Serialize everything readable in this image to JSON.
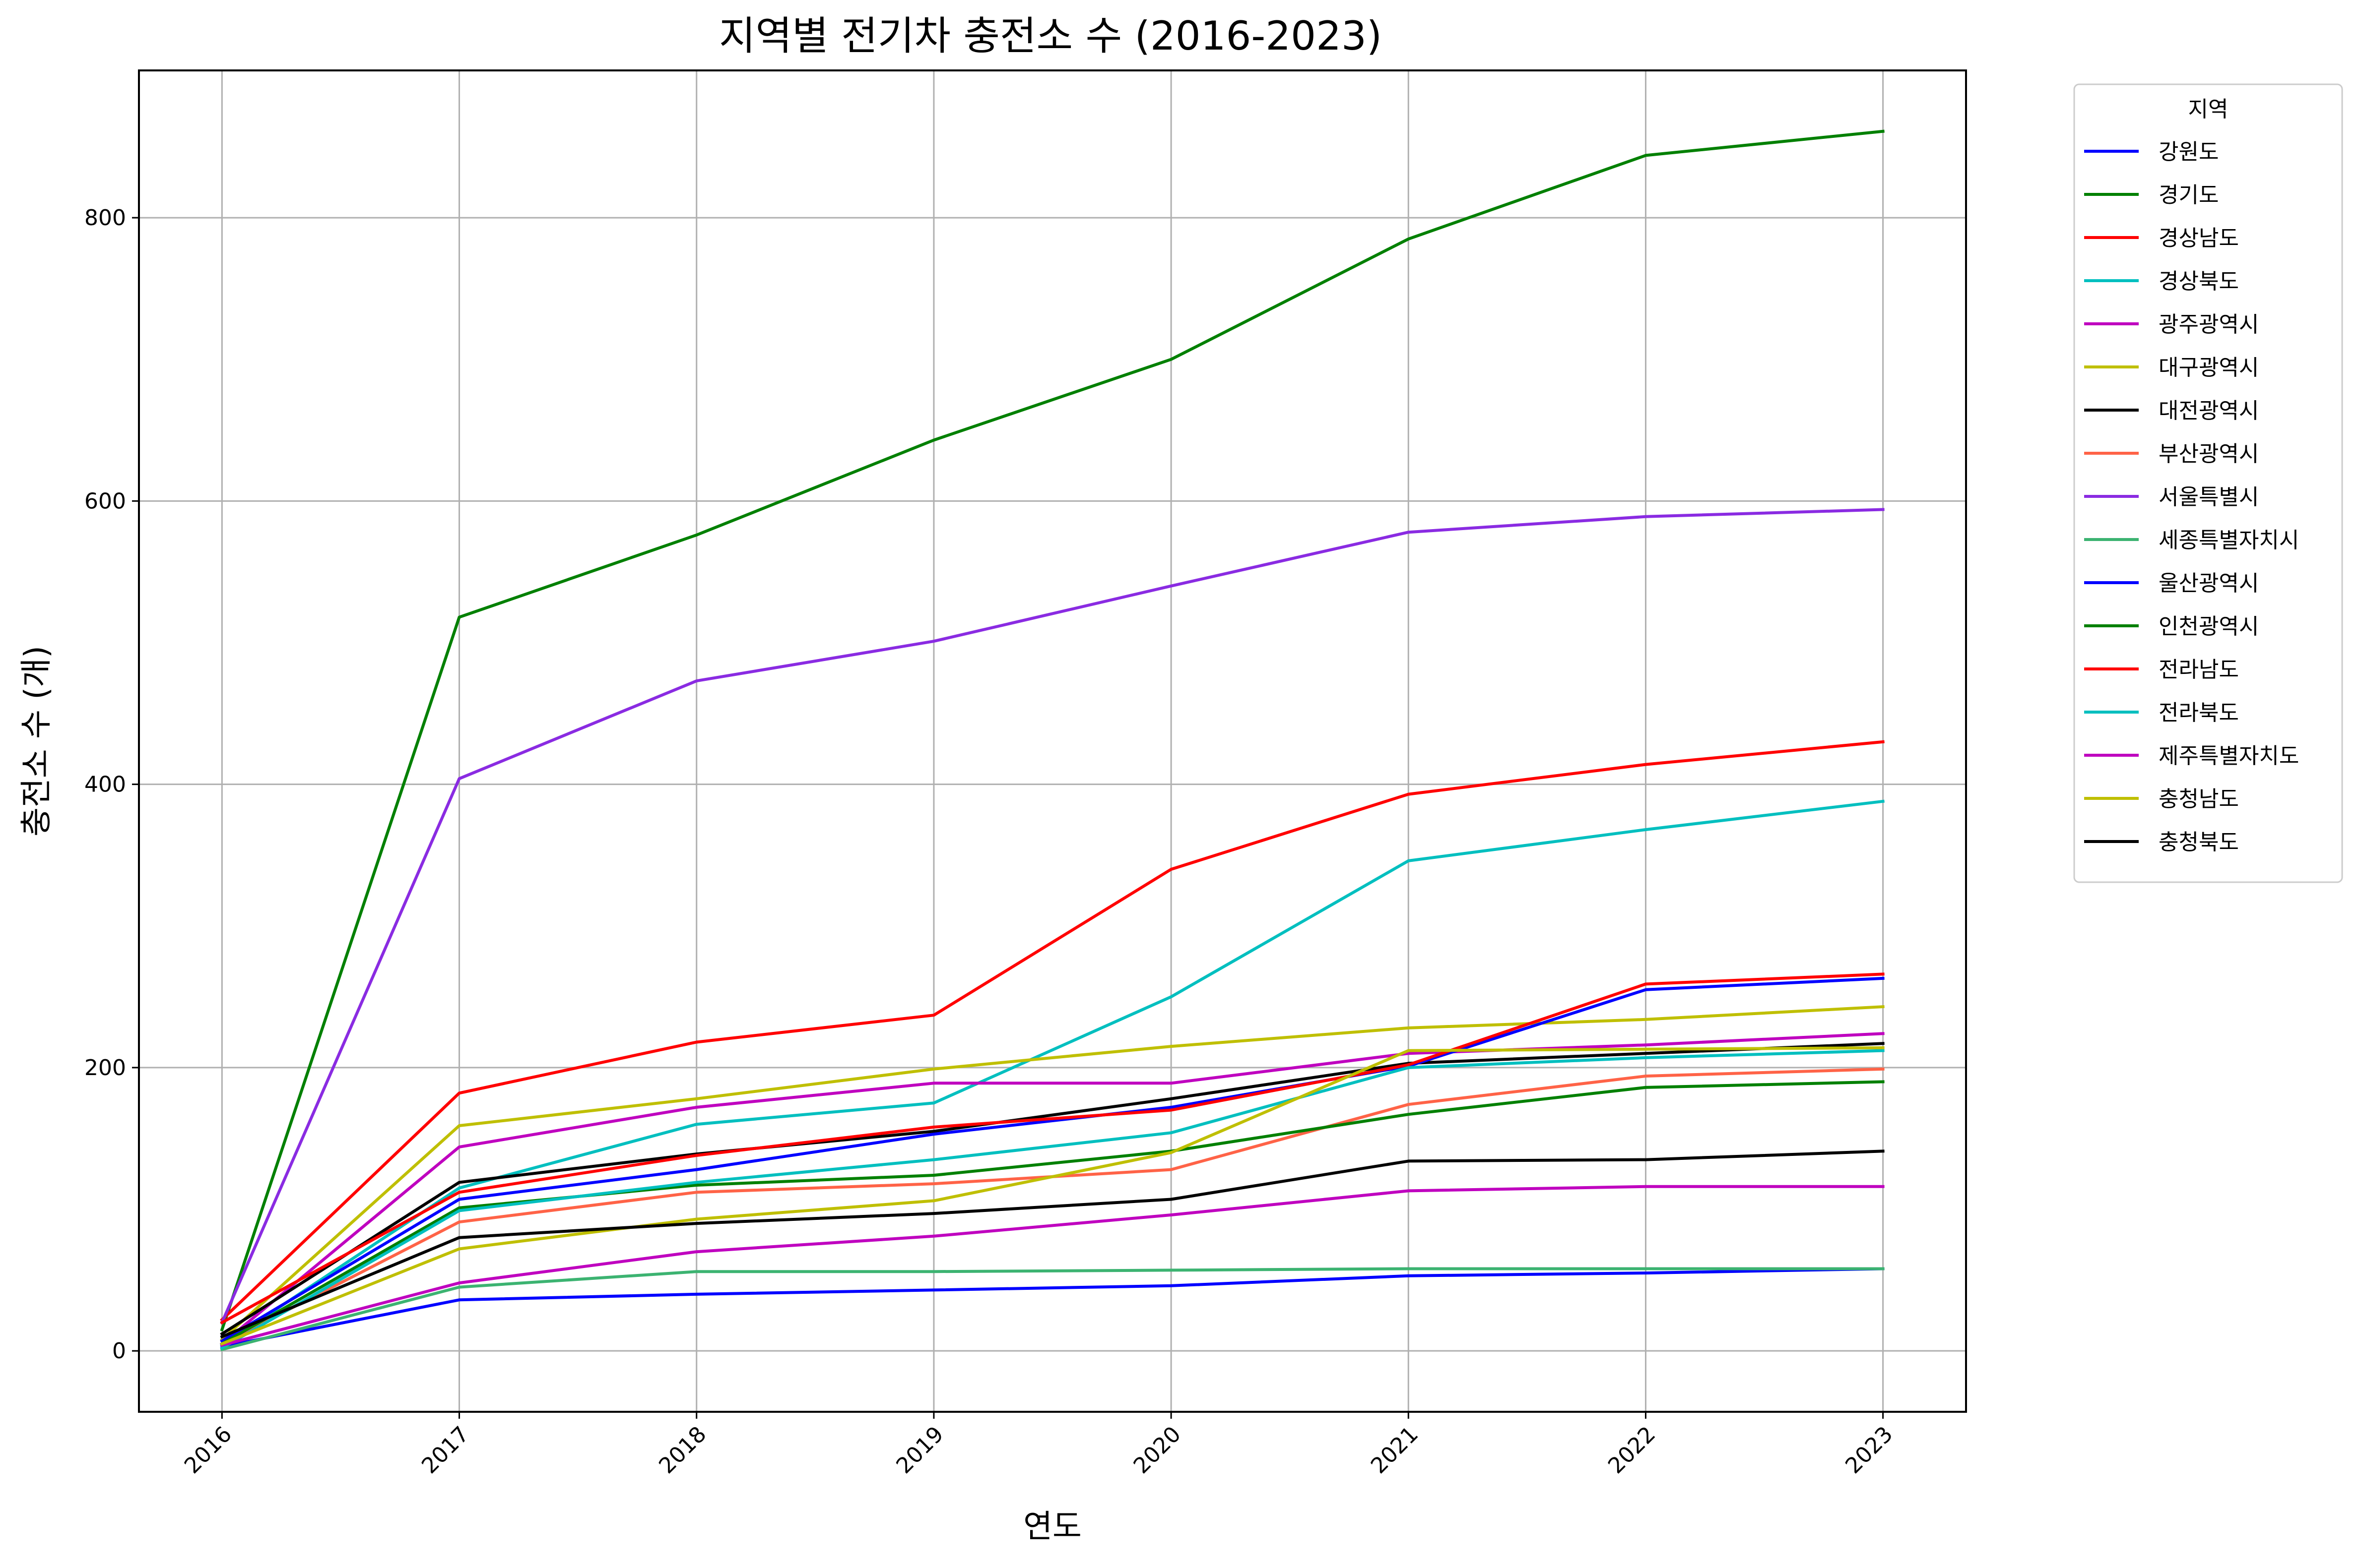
{
  "chart_data": {
    "type": "line",
    "title": "지역별 전기차 충전소 수 (2016-2023)",
    "xlabel": "연도",
    "ylabel": "충전소 수 (개)",
    "x": [
      2016,
      2017,
      2018,
      2019,
      2020,
      2021,
      2022,
      2023
    ],
    "x_tick_labels": [
      "2016",
      "2017",
      "2018",
      "2019",
      "2020",
      "2021",
      "2022",
      "2023"
    ],
    "y_ticks": [
      0,
      200,
      400,
      600,
      800
    ],
    "y_tick_labels": [
      "0",
      "200",
      "400",
      "600",
      "800"
    ],
    "ylim": [
      -43,
      904
    ],
    "xlim": [
      2015.65,
      2023.35
    ],
    "grid": true,
    "legend": {
      "title": "지역",
      "placement": "outside-top-right"
    },
    "series": [
      {
        "name": "강원도",
        "color": "#0000ff",
        "values": [
          3,
          36,
          40,
          43,
          46,
          53,
          55,
          58
        ]
      },
      {
        "name": "경기도",
        "color": "#008000",
        "values": [
          15,
          518,
          576,
          643,
          700,
          785,
          844,
          861
        ]
      },
      {
        "name": "경상남도",
        "color": "#ff0000",
        "values": [
          22,
          182,
          218,
          237,
          340,
          393,
          414,
          430
        ]
      },
      {
        "name": "경상북도",
        "color": "#00bfbf",
        "values": [
          4,
          115,
          160,
          175,
          250,
          346,
          368,
          388
        ]
      },
      {
        "name": "광주광역시",
        "color": "#bf00bf",
        "values": [
          5,
          144,
          172,
          189,
          189,
          210,
          216,
          224
        ]
      },
      {
        "name": "대구광역시",
        "color": "#bfbf00",
        "values": [
          8,
          159,
          178,
          199,
          215,
          228,
          234,
          243
        ]
      },
      {
        "name": "대전광역시",
        "color": "#000000",
        "values": [
          12,
          119,
          139,
          155,
          178,
          203,
          210,
          217
        ]
      },
      {
        "name": "부산광역시",
        "color": "#ff6347",
        "values": [
          5,
          91,
          112,
          118,
          128,
          174,
          194,
          199
        ]
      },
      {
        "name": "서울특별시",
        "color": "#8a2be2",
        "values": [
          20,
          404,
          473,
          501,
          540,
          578,
          589,
          594
        ]
      },
      {
        "name": "세종특별자치시",
        "color": "#3cb371",
        "values": [
          1,
          45,
          56,
          56,
          57,
          58,
          58,
          58
        ]
      },
      {
        "name": "울산광역시",
        "color": "#0000ff",
        "values": [
          7,
          107,
          128,
          153,
          172,
          201,
          255,
          263
        ]
      },
      {
        "name": "인천광역시",
        "color": "#008000",
        "values": [
          5,
          101,
          117,
          124,
          141,
          167,
          186,
          190
        ]
      },
      {
        "name": "전라남도",
        "color": "#ff0000",
        "values": [
          20,
          112,
          138,
          158,
          170,
          202,
          259,
          266
        ]
      },
      {
        "name": "전라북도",
        "color": "#00bfbf",
        "values": [
          2,
          99,
          119,
          135,
          154,
          200,
          207,
          212
        ]
      },
      {
        "name": "제주특별자치도",
        "color": "#bf00bf",
        "values": [
          4,
          48,
          70,
          81,
          96,
          113,
          116,
          116
        ]
      },
      {
        "name": "충청남도",
        "color": "#bfbf00",
        "values": [
          5,
          72,
          93,
          106,
          140,
          212,
          213,
          214
        ]
      },
      {
        "name": "충청북도",
        "color": "#000000",
        "values": [
          10,
          80,
          90,
          97,
          107,
          134,
          135,
          141
        ]
      }
    ]
  }
}
